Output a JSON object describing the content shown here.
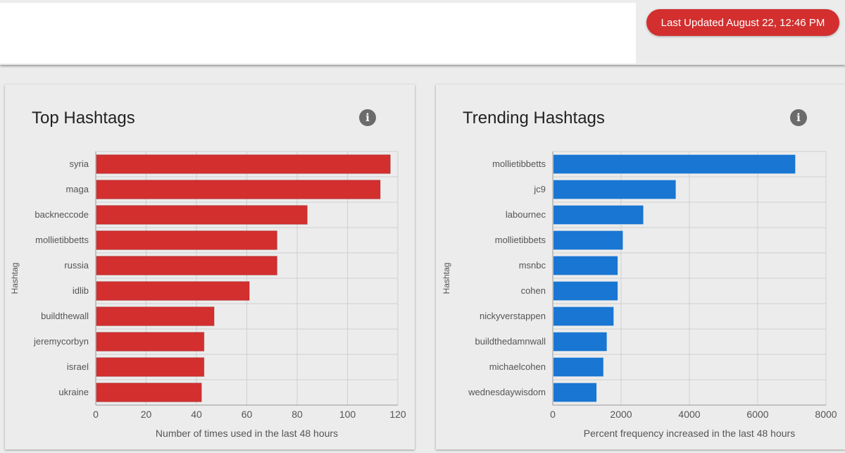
{
  "header": {
    "last_updated": "Last Updated August 22, 12:46 PM"
  },
  "colors": {
    "accent_red": "#d32f2f",
    "bar_red": "#d32f2f",
    "bar_blue": "#1976d2"
  },
  "icons": {
    "info": "info-icon"
  },
  "chart_data": [
    {
      "type": "bar",
      "orientation": "horizontal",
      "title": "Top Hashtags",
      "categories": [
        "syria",
        "maga",
        "backneccode",
        "mollietibbetts",
        "russia",
        "idlib",
        "buildthewall",
        "jeremycorbyn",
        "israel",
        "ukraine"
      ],
      "values": [
        117,
        113,
        84,
        72,
        72,
        61,
        47,
        43,
        43,
        42
      ],
      "xlabel": "Number of times used in the last 48 hours",
      "ylabel": "Hashtag",
      "xlim": [
        0,
        120
      ],
      "ticks": [
        0,
        20,
        40,
        60,
        80,
        100,
        120
      ],
      "grid": true,
      "color": "#d32f2f"
    },
    {
      "type": "bar",
      "orientation": "horizontal",
      "title": "Trending Hashtags",
      "categories": [
        "mollietibbetts",
        "jc9",
        "labournec",
        "mollietibbets",
        "msnbc",
        "cohen",
        "nickyverstappen",
        "buildthedamnwall",
        "michaelcohen",
        "wednesdaywisdom"
      ],
      "values": [
        7100,
        3600,
        2650,
        2050,
        1900,
        1900,
        1780,
        1580,
        1480,
        1280
      ],
      "xlabel": "Percent frequency increased in the last 48 hours",
      "ylabel": "Hashtag",
      "xlim": [
        0,
        8000
      ],
      "ticks": [
        0,
        2000,
        4000,
        6000,
        8000
      ],
      "grid": true,
      "color": "#1976d2"
    }
  ]
}
